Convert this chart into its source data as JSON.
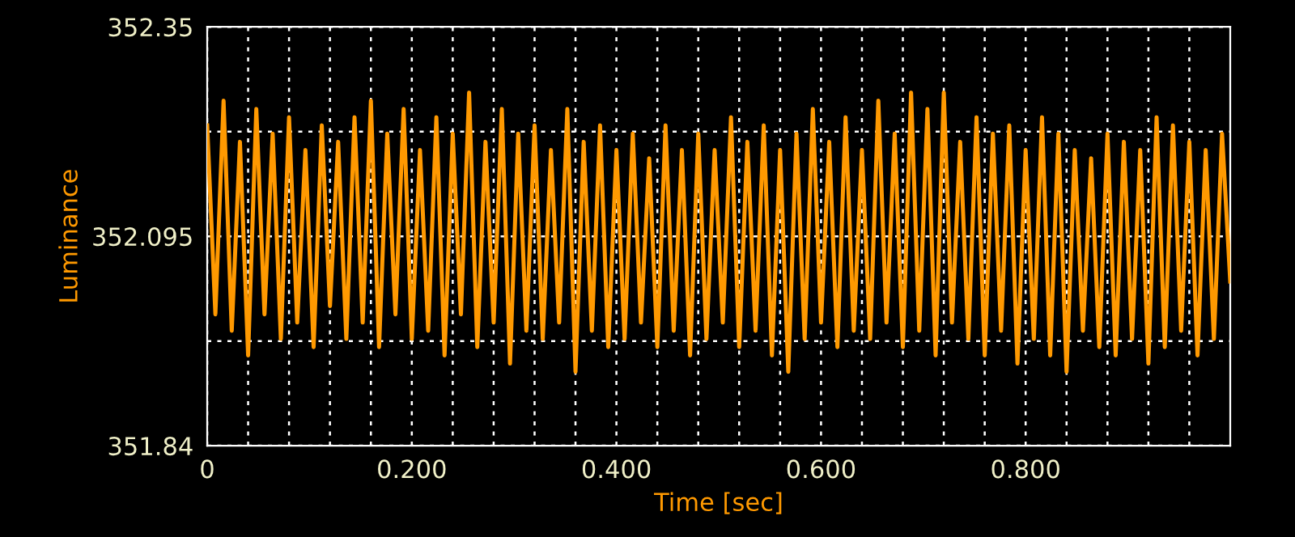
{
  "chart_data": {
    "type": "line",
    "xlabel": "Time [sec]",
    "ylabel": "Luminance",
    "xlim": [
      0,
      1
    ],
    "ylim": [
      351.84,
      352.35
    ],
    "xticks": [
      0,
      {
        "value": 0.04,
        "label": null
      },
      {
        "value": 0.08,
        "label": null
      },
      {
        "value": 0.12,
        "label": null
      },
      {
        "value": 0.16,
        "label": null
      },
      {
        "value": 0.2,
        "label": "0.200"
      },
      {
        "value": 0.24,
        "label": null
      },
      {
        "value": 0.28,
        "label": null
      },
      {
        "value": 0.32,
        "label": null
      },
      {
        "value": 0.36,
        "label": null
      },
      {
        "value": 0.4,
        "label": "0.400"
      },
      {
        "value": 0.44,
        "label": null
      },
      {
        "value": 0.48,
        "label": null
      },
      {
        "value": 0.52,
        "label": null
      },
      {
        "value": 0.56,
        "label": null
      },
      {
        "value": 0.6,
        "label": "0.600"
      },
      {
        "value": 0.64,
        "label": null
      },
      {
        "value": 0.68,
        "label": null
      },
      {
        "value": 0.72,
        "label": null
      },
      {
        "value": 0.76,
        "label": null
      },
      {
        "value": 0.8,
        "label": "0.800"
      },
      {
        "value": 0.84,
        "label": null
      },
      {
        "value": 0.88,
        "label": null
      },
      {
        "value": 0.92,
        "label": null
      },
      {
        "value": 0.96,
        "label": null
      }
    ],
    "yticks": [
      351.84,
      {
        "value": 351.9675,
        "label": null
      },
      352.095,
      {
        "value": 352.2225,
        "label": null
      },
      352.35
    ],
    "grid": true,
    "line_style": "solid",
    "x": [
      0,
      0.008,
      0.016,
      0.024,
      0.032,
      0.04,
      0.048,
      0.056,
      0.064,
      0.072,
      0.08,
      0.088,
      0.096,
      0.104,
      0.112,
      0.12,
      0.128,
      0.136,
      0.144,
      0.152,
      0.16,
      0.168,
      0.176,
      0.184,
      0.192,
      0.2,
      0.208,
      0.216,
      0.224,
      0.232,
      0.24,
      0.248,
      0.256,
      0.264,
      0.272,
      0.28,
      0.288,
      0.296,
      0.304,
      0.312,
      0.32,
      0.328,
      0.336,
      0.344,
      0.352,
      0.36,
      0.368,
      0.376,
      0.384,
      0.392,
      0.4,
      0.408,
      0.416,
      0.424,
      0.432,
      0.44,
      0.448,
      0.456,
      0.464,
      0.472,
      0.48,
      0.488,
      0.496,
      0.504,
      0.512,
      0.52,
      0.528,
      0.536,
      0.544,
      0.552,
      0.56,
      0.568,
      0.576,
      0.584,
      0.592,
      0.6,
      0.608,
      0.616,
      0.624,
      0.632,
      0.64,
      0.648,
      0.656,
      0.664,
      0.672,
      0.68,
      0.688,
      0.696,
      0.704,
      0.712,
      0.72,
      0.728,
      0.736,
      0.744,
      0.752,
      0.76,
      0.768,
      0.776,
      0.784,
      0.792,
      0.8,
      0.808,
      0.816,
      0.824,
      0.832,
      0.84,
      0.848,
      0.856,
      0.864,
      0.872,
      0.88,
      0.888,
      0.896,
      0.904,
      0.912,
      0.92,
      0.928,
      0.936,
      0.944,
      0.952,
      0.96,
      0.968,
      0.976,
      0.984,
      0.992,
      1.0
    ],
    "series": [
      {
        "color": "#ff9900",
        "values": [
          352.23,
          352.0,
          352.26,
          351.98,
          352.21,
          351.95,
          352.25,
          352.0,
          352.22,
          351.97,
          352.24,
          351.99,
          352.2,
          351.96,
          352.23,
          352.01,
          352.21,
          351.97,
          352.24,
          351.99,
          352.26,
          351.96,
          352.22,
          352.0,
          352.25,
          351.97,
          352.2,
          351.98,
          352.24,
          351.95,
          352.22,
          352.0,
          352.27,
          351.96,
          352.21,
          351.99,
          352.25,
          351.94,
          352.22,
          351.98,
          352.23,
          351.97,
          352.2,
          351.99,
          352.25,
          351.93,
          352.21,
          351.98,
          352.23,
          351.96,
          352.2,
          351.97,
          352.22,
          351.99,
          352.19,
          351.96,
          352.23,
          351.98,
          352.2,
          351.95,
          352.22,
          351.97,
          352.2,
          351.99,
          352.24,
          351.96,
          352.21,
          351.98,
          352.23,
          351.95,
          352.2,
          351.93,
          352.22,
          351.97,
          352.25,
          351.99,
          352.21,
          351.96,
          352.24,
          351.98,
          352.2,
          351.97,
          352.26,
          351.99,
          352.22,
          351.96,
          352.27,
          351.98,
          352.25,
          351.95,
          352.27,
          351.99,
          352.21,
          351.97,
          352.24,
          351.95,
          352.22,
          351.98,
          352.23,
          351.94,
          352.2,
          351.97,
          352.24,
          351.95,
          352.22,
          351.93,
          352.2,
          351.98,
          352.19,
          351.96,
          352.22,
          351.95,
          352.21,
          351.97,
          352.2,
          351.94,
          352.24,
          351.96,
          352.23,
          351.98,
          352.21,
          351.95,
          352.2,
          351.97,
          352.22,
          352.04
        ]
      }
    ]
  }
}
